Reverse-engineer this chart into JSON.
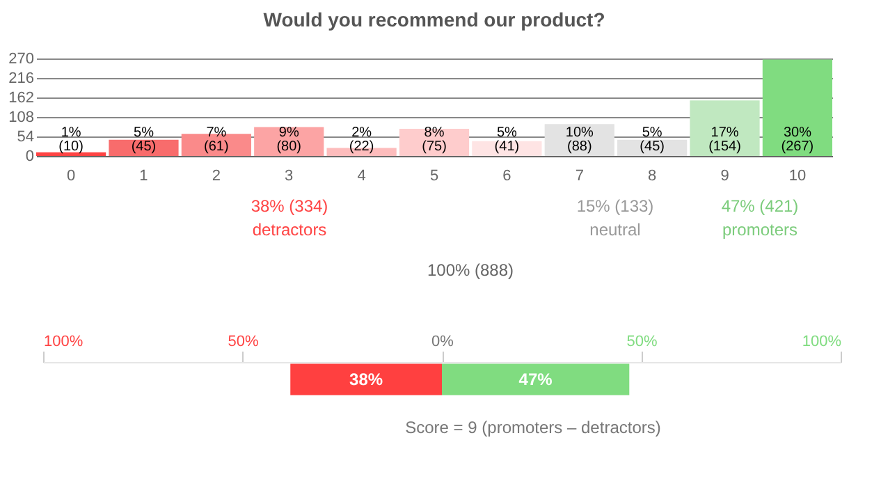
{
  "chart_data": [
    {
      "type": "bar",
      "title": "Would you recommend our product?",
      "categories": [
        "0",
        "1",
        "2",
        "3",
        "4",
        "5",
        "6",
        "7",
        "8",
        "9",
        "10"
      ],
      "values": [
        10,
        45,
        61,
        80,
        22,
        75,
        41,
        88,
        45,
        154,
        267
      ],
      "colors": [
        "#ff4444",
        "#f86c6c",
        "#fa8a8a",
        "#fca4a4",
        "#fdbcbc",
        "#fecccc",
        "#fee4e4",
        "#e3e3e3",
        "#e3e3e3",
        "#c0e8c0",
        "#80dc80"
      ],
      "value_labels": [
        "1% (10)",
        "5% (45)",
        "7% (61)",
        "9% (80)",
        "2% (22)",
        "8% (75)",
        "5% (41)",
        "10% (88)",
        "5% (45)",
        "17% (154)",
        "30% (267)"
      ],
      "ylim": [
        0,
        270
      ],
      "yticks": [
        0,
        54,
        108,
        162,
        216,
        270
      ],
      "grid": "y",
      "annotations": [
        "38% (334)",
        "detractors",
        "15% (133)",
        "neutral",
        "47% (421)",
        "promoters",
        "100% (888)"
      ]
    },
    {
      "type": "bar",
      "orientation": "horizontal",
      "categories": [
        null
      ],
      "series": [
        {
          "color": "#ff4040",
          "values": [
            38
          ],
          "base": [
            -38
          ],
          "value_labels": [
            "38%"
          ]
        },
        {
          "color": "#80dc80",
          "values": [
            47
          ],
          "base": [
            0
          ],
          "value_labels": [
            "47%"
          ]
        }
      ],
      "xlim": [
        -100,
        100
      ],
      "xticks": [
        {
          "value": -100,
          "label": "100%"
        },
        {
          "value": -50,
          "label": "50%"
        },
        {
          "value": 0,
          "label": "0%"
        },
        {
          "value": 50,
          "label": "50%"
        },
        {
          "value": 100,
          "label": "100%"
        }
      ],
      "grid": false,
      "tick_labels": "x",
      "annotations": [
        "Score = 9 (promoters  –  detractors)"
      ]
    }
  ]
}
